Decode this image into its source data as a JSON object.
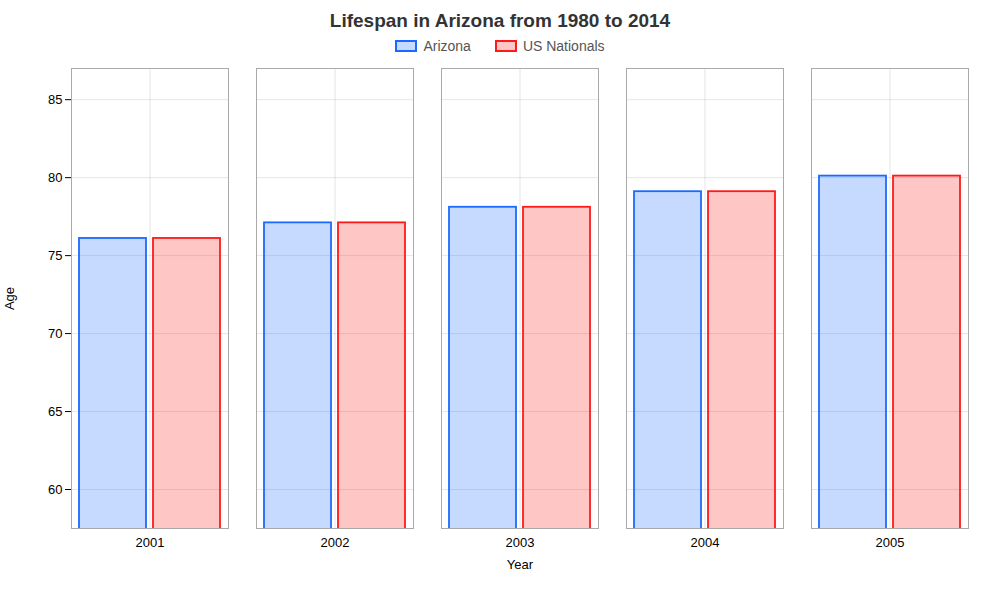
{
  "chart_data": {
    "type": "bar",
    "title": "Lifespan in Arizona from 1980 to 2014",
    "x_label": "Year",
    "y_label": "Age",
    "categories": [
      2001,
      2002,
      2003,
      2004,
      2005
    ],
    "series": [
      {
        "name": "Arizona",
        "color": "#1a6aff",
        "values": [
          76.1,
          77.1,
          78.1,
          79.1,
          80.1
        ]
      },
      {
        "name": "US Nationals",
        "color": "#ff1a1a",
        "values": [
          76.1,
          77.1,
          78.1,
          79.1,
          80.1
        ]
      }
    ],
    "ylim": [
      57.5,
      87
    ],
    "yticks": [
      60,
      65,
      70,
      75,
      80,
      85
    ],
    "grid": true,
    "legend": "top"
  }
}
